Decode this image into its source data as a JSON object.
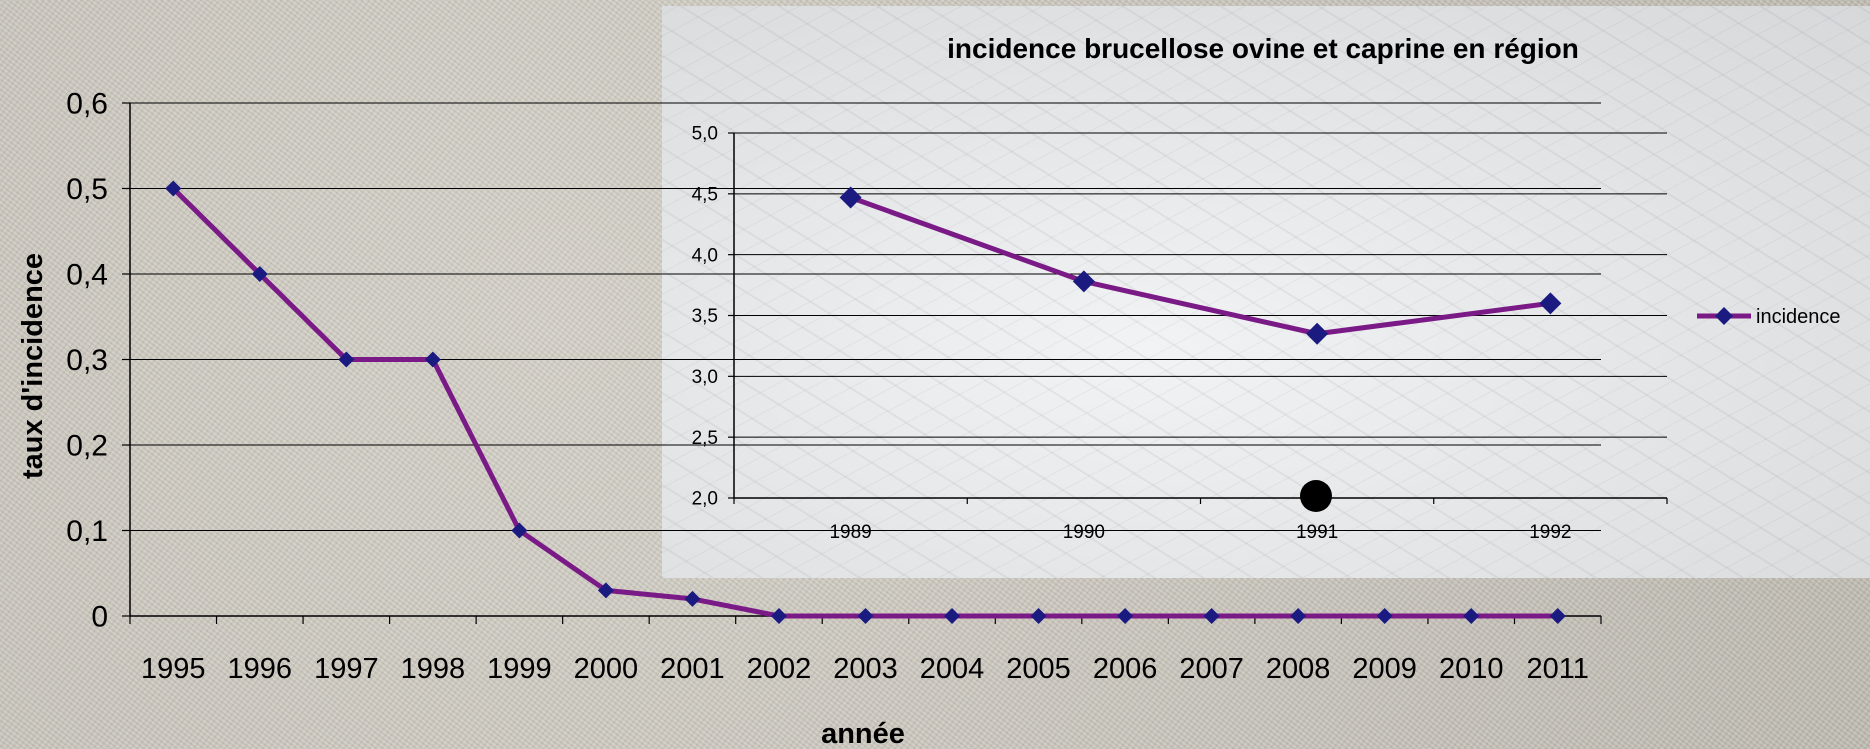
{
  "main_chart": {
    "ylabel": "taux d'incidence",
    "xlabel": "année"
  },
  "inset_chart": {
    "title": "incidence brucellose ovine et caprine en région",
    "legend_label": "incidence"
  },
  "chart_data": [
    {
      "type": "line",
      "title": "",
      "xlabel": "année",
      "ylabel": "taux d'incidence",
      "categories": [
        "1995",
        "1996",
        "1997",
        "1998",
        "1999",
        "2000",
        "2001",
        "2002",
        "2003",
        "2004",
        "2005",
        "2006",
        "2007",
        "2008",
        "2009",
        "2010",
        "2011"
      ],
      "series": [
        {
          "name": "",
          "values": [
            0.5,
            0.4,
            0.3,
            0.3,
            0.1,
            0.03,
            0.02,
            0,
            0,
            0,
            0,
            0,
            0,
            0,
            0,
            0,
            0
          ]
        }
      ],
      "ylim": [
        0,
        0.6
      ],
      "yticks": [
        "0",
        "0,1",
        "0,2",
        "0,3",
        "0,4",
        "0,5",
        "0,6"
      ],
      "grid": true,
      "line_color": "#7a1a86",
      "marker_color": "#1a1a80"
    },
    {
      "type": "line",
      "title": "incidence brucellose ovine et caprine en région",
      "xlabel": "",
      "ylabel": "",
      "categories": [
        "1989",
        "1990",
        "1991",
        "1992"
      ],
      "series": [
        {
          "name": "incidence",
          "values": [
            4.47,
            3.78,
            3.35,
            3.6
          ]
        }
      ],
      "ylim": [
        2.0,
        5.0
      ],
      "yticks": [
        "2,0",
        "2,5",
        "3,0",
        "3,5",
        "4,0",
        "4,5",
        "5,0"
      ],
      "grid": true,
      "legend_position": "right",
      "line_color": "#7a1a86",
      "marker_color": "#1a1a80"
    }
  ]
}
